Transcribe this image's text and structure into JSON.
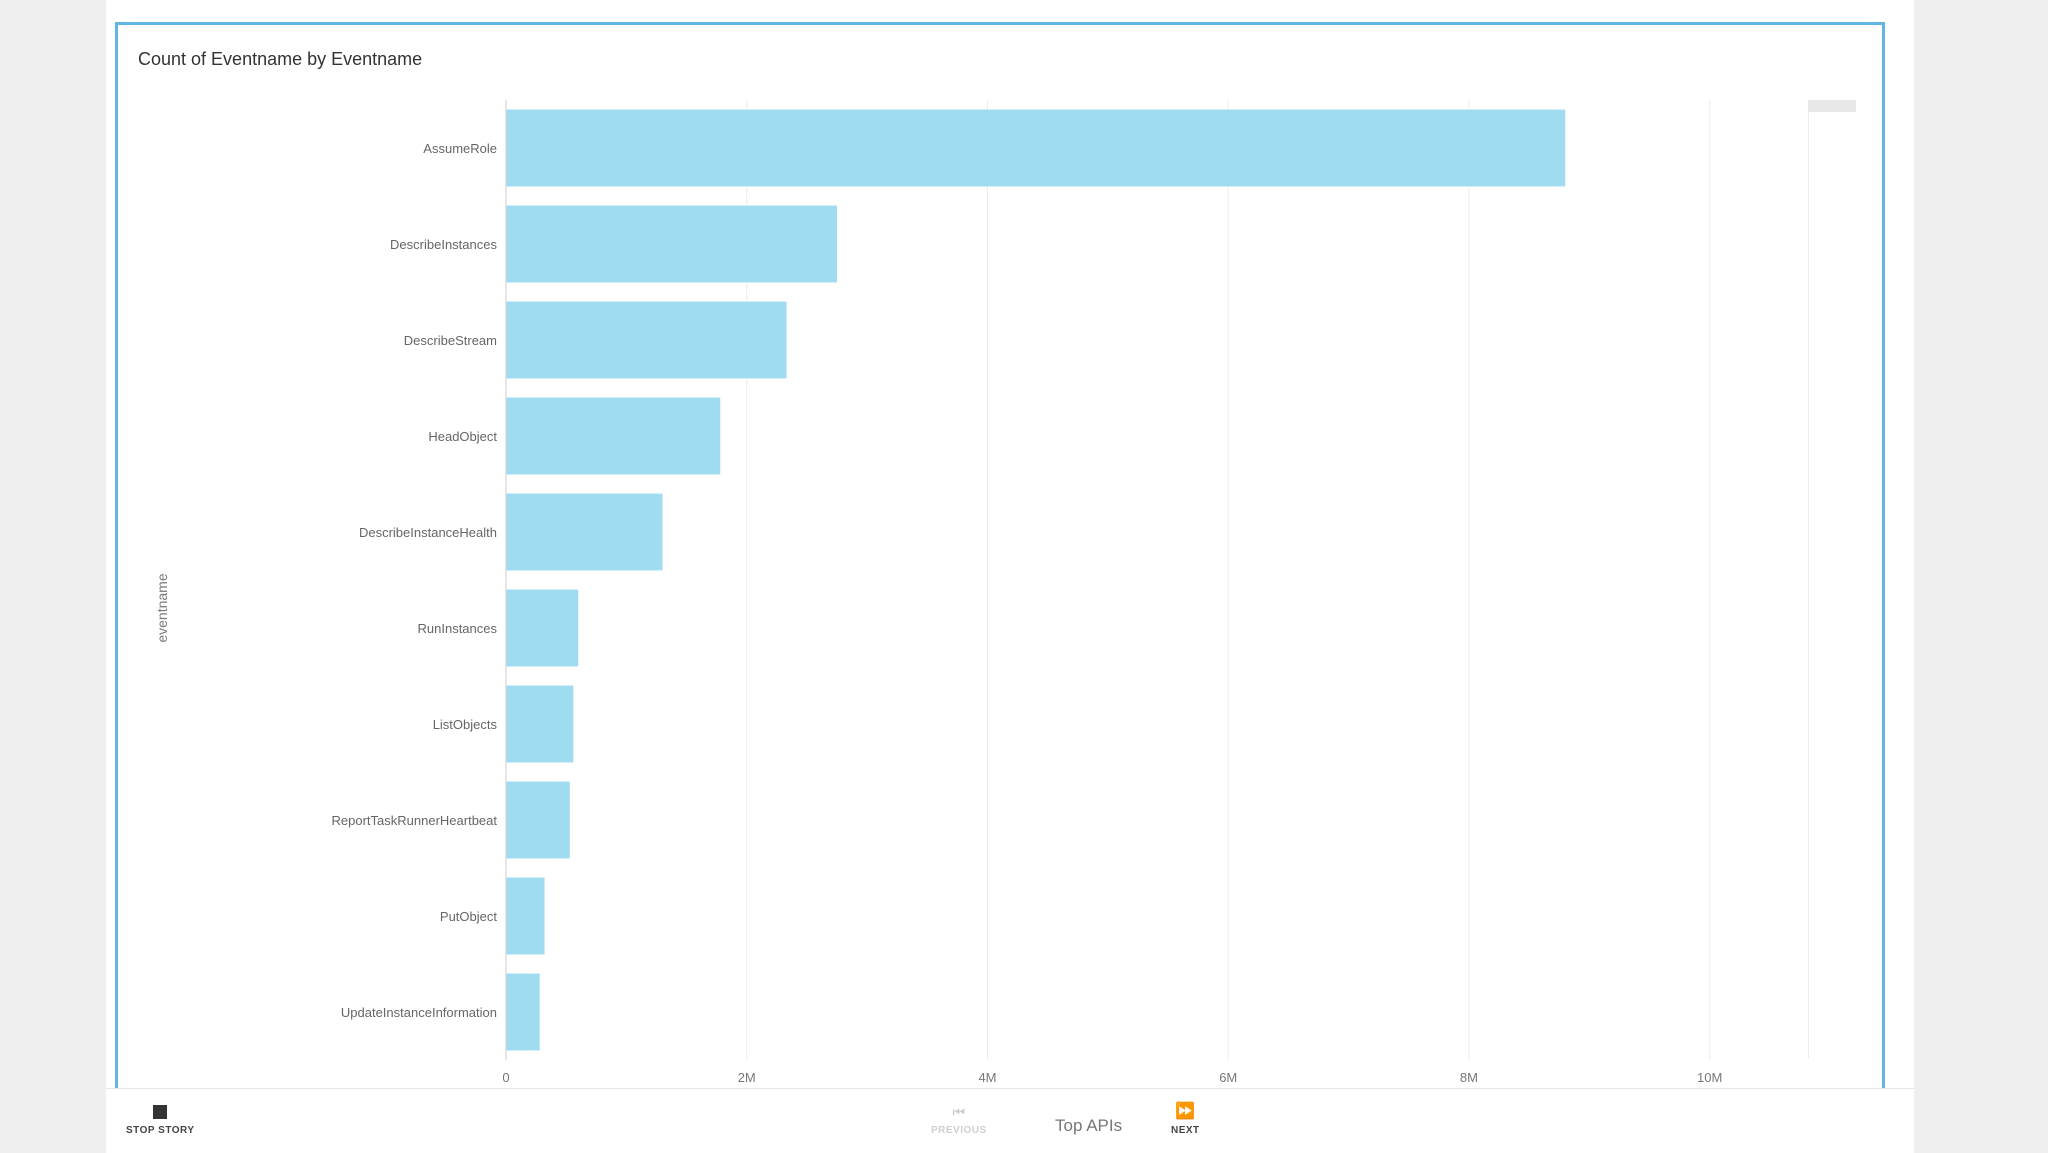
{
  "chart_data": {
    "type": "bar",
    "orientation": "horizontal",
    "title": "Count of Eventname by Eventname",
    "ylabel": "eventname",
    "xlabel": "",
    "categories": [
      "AssumeRole",
      "DescribeInstances",
      "DescribeStream",
      "HeadObject",
      "DescribeInstanceHealth",
      "RunInstances",
      "ListObjects",
      "ReportTaskRunnerHeartbeat",
      "PutObject",
      "UpdateInstanceInformation"
    ],
    "values": [
      8800000,
      2750000,
      2330000,
      1780000,
      1300000,
      600000,
      560000,
      530000,
      320000,
      280000
    ],
    "xlim": [
      0,
      10800000
    ],
    "xticks": [
      0,
      2000000,
      4000000,
      6000000,
      8000000,
      10000000
    ],
    "xtick_labels": [
      "0",
      "2M",
      "4M",
      "6M",
      "8M",
      "10M"
    ],
    "grid": true,
    "legend": "none",
    "bar_color": "#9fdcef"
  },
  "footer": {
    "stop_label": "STOP STORY",
    "prev_label": "PREVIOUS",
    "story_title": "Top APIs",
    "next_label": "NEXT"
  },
  "icons": {
    "stop": "stop-icon",
    "prev": "skip-previous-icon",
    "next": "fast-forward-icon"
  }
}
